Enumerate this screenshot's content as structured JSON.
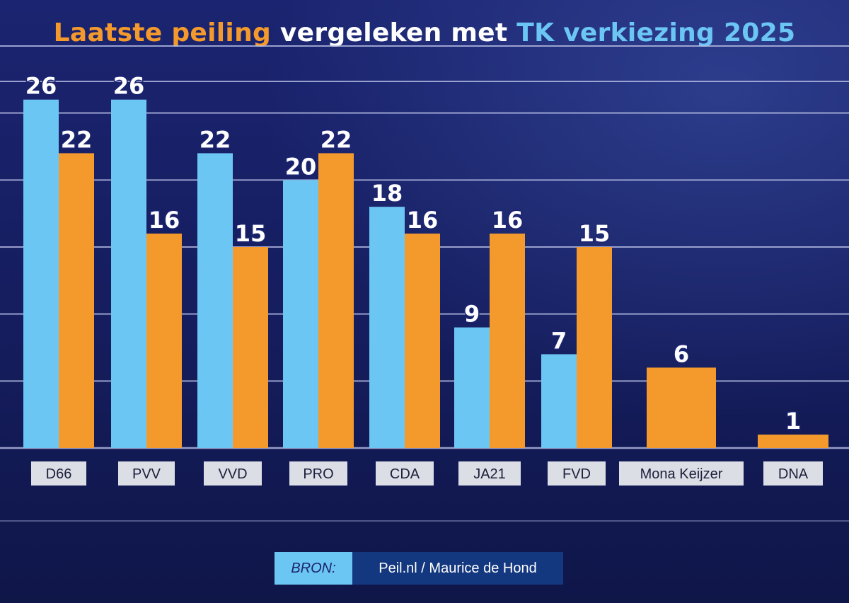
{
  "title": {
    "part_orange": "Laatste peiling",
    "part_white": " vergeleken met ",
    "part_blue": "TK verkiezing 2025"
  },
  "source": {
    "label": "BRON:",
    "text": "Peil.nl / Maurice de Hond"
  },
  "colors": {
    "tk2025": "#6cc6f4",
    "peiling": "#f49a2c",
    "label_bg": "#dcdee6",
    "label_text": "#1b1f3a",
    "gridline": "#b9c0e6"
  },
  "chart_data": {
    "type": "bar",
    "title": "Laatste peiling vergeleken met TK verkiezing 2025",
    "categories": [
      "D66",
      "PVV",
      "VVD",
      "PRO",
      "CDA",
      "JA21",
      "FVD",
      "Mona Keijzer",
      "DNA"
    ],
    "series": [
      {
        "name": "TK verkiezing 2025",
        "color": "#6cc6f4",
        "values": [
          26,
          26,
          22,
          20,
          18,
          9,
          7,
          null,
          null
        ]
      },
      {
        "name": "Laatste peiling",
        "color": "#f49a2c",
        "values": [
          22,
          16,
          15,
          22,
          16,
          16,
          15,
          6,
          1
        ]
      }
    ],
    "xlabel": "",
    "ylabel": "",
    "ylim": [
      0,
      30
    ],
    "grid": true,
    "legend": "none"
  }
}
